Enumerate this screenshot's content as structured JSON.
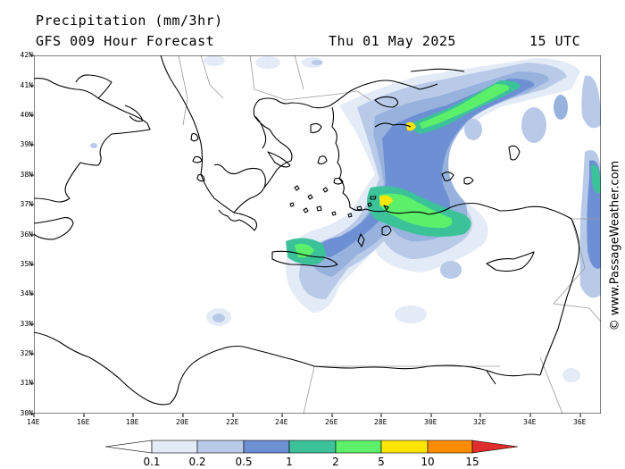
{
  "header": {
    "title": "Precipitation (mm/3hr)",
    "model": "GFS 009 Hour Forecast",
    "date": "Thu 01 May 2025",
    "time": "15 UTC"
  },
  "axes": {
    "lat": [
      "42N",
      "41N",
      "40N",
      "39N",
      "38N",
      "37N",
      "36N",
      "35N",
      "34N",
      "33N",
      "32N",
      "31N",
      "30N"
    ],
    "lon": [
      "14E",
      "16E",
      "18E",
      "20E",
      "22E",
      "24E",
      "26E",
      "28E",
      "30E",
      "32E",
      "34E",
      "36E"
    ]
  },
  "watermark": "© www.PassageWeather.com",
  "legend": {
    "labels": [
      "0.1",
      "0.2",
      "0.5",
      "1",
      "2",
      "5",
      "10",
      "15"
    ],
    "colors": [
      "#e3ebf7",
      "#b8cae8",
      "#98b2de",
      "#6d8fd4",
      "#3cc299",
      "#5cf06a",
      "#ffe600",
      "#ff8c00",
      "#e02c2c"
    ]
  }
}
